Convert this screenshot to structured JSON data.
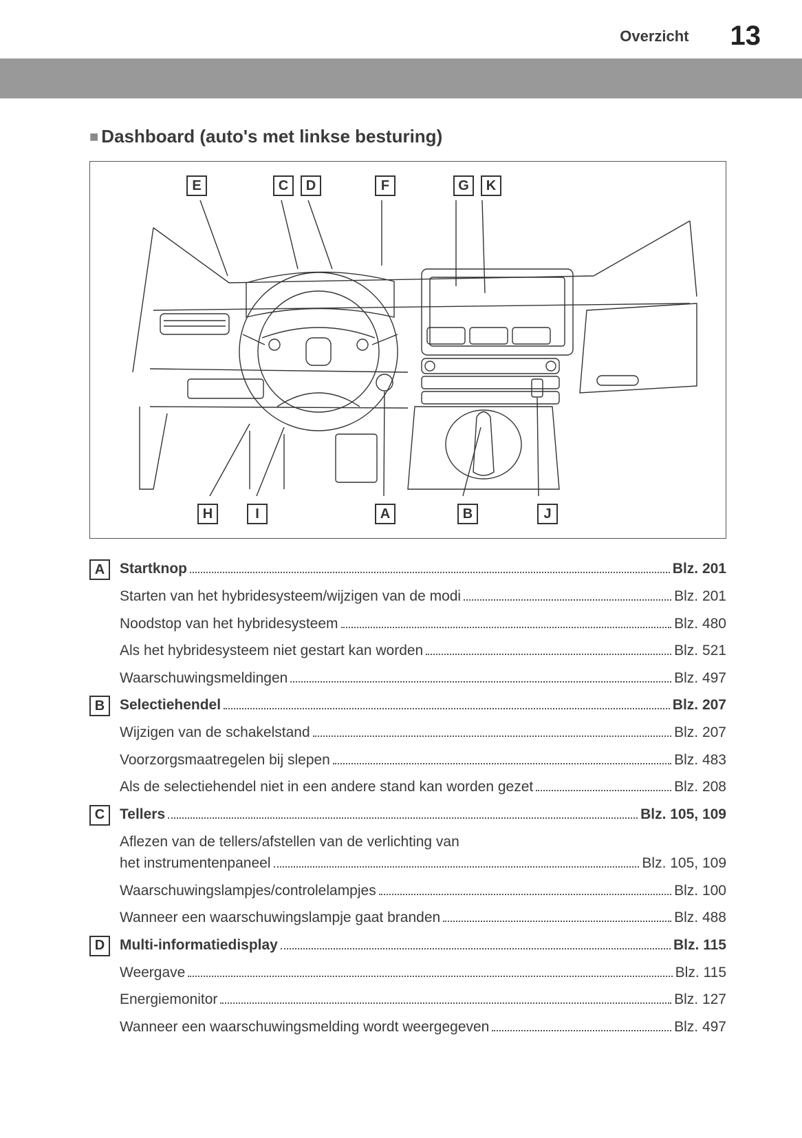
{
  "header": {
    "label": "Overzicht",
    "page_number": "13"
  },
  "section_title": "Dashboard (auto's met linkse besturing)",
  "diagram": {
    "top_labels": [
      "E",
      "C",
      "D",
      "F",
      "G",
      "K"
    ],
    "bottom_labels": [
      "H",
      "I",
      "A",
      "B",
      "J"
    ]
  },
  "toc": [
    {
      "letter": "A",
      "heading": {
        "text": "Startknop",
        "page": "Blz. 201"
      },
      "items": [
        {
          "text": "Starten van het hybridesysteem/wijzigen van de modi",
          "page": "Blz. 201"
        },
        {
          "text": "Noodstop van het hybridesysteem",
          "page": "Blz. 480"
        },
        {
          "text": "Als het hybridesysteem niet gestart kan worden",
          "page": "Blz. 521"
        },
        {
          "text": "Waarschuwingsmeldingen",
          "page": "Blz. 497"
        }
      ]
    },
    {
      "letter": "B",
      "heading": {
        "text": "Selectiehendel",
        "page": "Blz. 207"
      },
      "items": [
        {
          "text": "Wijzigen van de schakelstand",
          "page": "Blz. 207"
        },
        {
          "text": "Voorzorgsmaatregelen bij slepen",
          "page": "Blz. 483"
        },
        {
          "text": "Als de selectiehendel niet in een andere stand kan worden gezet",
          "page": "Blz. 208"
        }
      ]
    },
    {
      "letter": "C",
      "heading": {
        "text": "Tellers",
        "page": "Blz. 105, 109"
      },
      "items": [
        {
          "text_lines": [
            "Aflezen van de tellers/afstellen van de verlichting van",
            "het instrumentenpaneel"
          ],
          "page": "Blz. 105, 109"
        },
        {
          "text": "Waarschuwingslampjes/controlelampjes",
          "page": "Blz. 100"
        },
        {
          "text": "Wanneer een waarschuwingslampje gaat branden",
          "page": "Blz. 488"
        }
      ]
    },
    {
      "letter": "D",
      "heading": {
        "text": "Multi-informatiedisplay",
        "page": "Blz. 115"
      },
      "items": [
        {
          "text": "Weergave",
          "page": "Blz. 115"
        },
        {
          "text": "Energiemonitor",
          "page": "Blz. 127"
        },
        {
          "text": "Wanneer een waarschuwingsmelding wordt weergegeven",
          "page": "Blz. 497"
        }
      ]
    }
  ],
  "colors": {
    "gray_band": "#999999",
    "text": "#3a3a3a",
    "border": "#333333"
  }
}
